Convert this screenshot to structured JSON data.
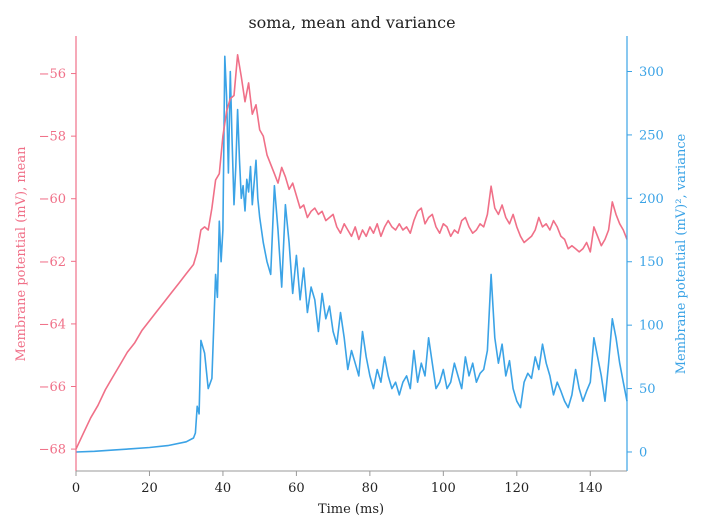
{
  "chart_data": {
    "type": "line",
    "title": "soma, mean and variance",
    "xlabel": "Time (ms)",
    "ylabel_left": "Membrane potential (mV), mean",
    "ylabel_right": "Membrane potential (mV)², variance",
    "xlim": [
      0,
      150
    ],
    "ylim_left": [
      -68.7,
      -54.8
    ],
    "ylim_right": [
      -15,
      328
    ],
    "xticks": [
      0,
      20,
      40,
      60,
      80,
      100,
      120,
      140
    ],
    "yticks_left": [
      -68,
      -66,
      -64,
      -62,
      -60,
      -58,
      -56
    ],
    "yticks_right": [
      0,
      50,
      100,
      150,
      200,
      250,
      300
    ],
    "grid": false,
    "colors": {
      "mean": "#f07088",
      "variance": "#3ba3e6",
      "axis": "#999999"
    },
    "series": [
      {
        "axis": "left",
        "color": "#f07088",
        "points": [
          [
            0,
            -68.0
          ],
          [
            2,
            -67.5
          ],
          [
            4,
            -67.0
          ],
          [
            6,
            -66.6
          ],
          [
            8,
            -66.1
          ],
          [
            10,
            -65.7
          ],
          [
            12,
            -65.3
          ],
          [
            14,
            -64.9
          ],
          [
            16,
            -64.6
          ],
          [
            18,
            -64.2
          ],
          [
            20,
            -63.9
          ],
          [
            22,
            -63.6
          ],
          [
            24,
            -63.3
          ],
          [
            26,
            -63.0
          ],
          [
            28,
            -62.7
          ],
          [
            30,
            -62.4
          ],
          [
            32,
            -62.1
          ],
          [
            33,
            -61.7
          ],
          [
            34,
            -61.0
          ],
          [
            35,
            -60.9
          ],
          [
            36,
            -61.0
          ],
          [
            37,
            -60.3
          ],
          [
            38,
            -59.4
          ],
          [
            39,
            -59.2
          ],
          [
            40,
            -58.0
          ],
          [
            41,
            -57.2
          ],
          [
            42,
            -56.8
          ],
          [
            43,
            -56.7
          ],
          [
            44,
            -55.4
          ],
          [
            45,
            -56.1
          ],
          [
            46,
            -56.9
          ],
          [
            47,
            -56.3
          ],
          [
            48,
            -57.3
          ],
          [
            49,
            -57.0
          ],
          [
            50,
            -57.8
          ],
          [
            51,
            -58.0
          ],
          [
            52,
            -58.6
          ],
          [
            53,
            -58.9
          ],
          [
            54,
            -59.2
          ],
          [
            55,
            -59.5
          ],
          [
            56,
            -59.0
          ],
          [
            57,
            -59.3
          ],
          [
            58,
            -59.7
          ],
          [
            59,
            -59.5
          ],
          [
            60,
            -59.9
          ],
          [
            61,
            -60.3
          ],
          [
            62,
            -60.2
          ],
          [
            63,
            -60.6
          ],
          [
            64,
            -60.4
          ],
          [
            65,
            -60.3
          ],
          [
            66,
            -60.5
          ],
          [
            67,
            -60.4
          ],
          [
            68,
            -60.7
          ],
          [
            69,
            -60.6
          ],
          [
            70,
            -60.5
          ],
          [
            71,
            -60.9
          ],
          [
            72,
            -61.1
          ],
          [
            73,
            -60.8
          ],
          [
            74,
            -61.0
          ],
          [
            75,
            -61.2
          ],
          [
            76,
            -60.9
          ],
          [
            77,
            -61.3
          ],
          [
            78,
            -61.0
          ],
          [
            79,
            -61.2
          ],
          [
            80,
            -60.9
          ],
          [
            81,
            -61.1
          ],
          [
            82,
            -60.8
          ],
          [
            83,
            -61.2
          ],
          [
            84,
            -60.9
          ],
          [
            85,
            -60.7
          ],
          [
            86,
            -60.9
          ],
          [
            87,
            -61.0
          ],
          [
            88,
            -60.8
          ],
          [
            89,
            -61.0
          ],
          [
            90,
            -60.9
          ],
          [
            91,
            -61.1
          ],
          [
            92,
            -60.7
          ],
          [
            93,
            -60.4
          ],
          [
            94,
            -60.3
          ],
          [
            95,
            -60.8
          ],
          [
            96,
            -60.6
          ],
          [
            97,
            -60.5
          ],
          [
            98,
            -60.9
          ],
          [
            99,
            -61.1
          ],
          [
            100,
            -60.8
          ],
          [
            101,
            -60.9
          ],
          [
            102,
            -61.2
          ],
          [
            103,
            -61.0
          ],
          [
            104,
            -61.1
          ],
          [
            105,
            -60.7
          ],
          [
            106,
            -60.6
          ],
          [
            107,
            -60.9
          ],
          [
            108,
            -61.1
          ],
          [
            109,
            -61.0
          ],
          [
            110,
            -60.8
          ],
          [
            111,
            -60.9
          ],
          [
            112,
            -60.5
          ],
          [
            113,
            -59.6
          ],
          [
            114,
            -60.3
          ],
          [
            115,
            -60.5
          ],
          [
            116,
            -60.2
          ],
          [
            117,
            -60.6
          ],
          [
            118,
            -60.8
          ],
          [
            119,
            -60.5
          ],
          [
            120,
            -60.9
          ],
          [
            121,
            -61.2
          ],
          [
            122,
            -61.4
          ],
          [
            123,
            -61.3
          ],
          [
            124,
            -61.2
          ],
          [
            125,
            -61.0
          ],
          [
            126,
            -60.6
          ],
          [
            127,
            -60.9
          ],
          [
            128,
            -60.8
          ],
          [
            129,
            -61.0
          ],
          [
            130,
            -60.7
          ],
          [
            131,
            -60.9
          ],
          [
            132,
            -61.2
          ],
          [
            133,
            -61.3
          ],
          [
            134,
            -61.6
          ],
          [
            135,
            -61.5
          ],
          [
            136,
            -61.6
          ],
          [
            137,
            -61.7
          ],
          [
            138,
            -61.6
          ],
          [
            139,
            -61.4
          ],
          [
            140,
            -61.7
          ],
          [
            141,
            -60.9
          ],
          [
            142,
            -61.2
          ],
          [
            143,
            -61.5
          ],
          [
            144,
            -61.3
          ],
          [
            145,
            -61.0
          ],
          [
            146,
            -60.1
          ],
          [
            147,
            -60.5
          ],
          [
            148,
            -60.8
          ],
          [
            149,
            -61.0
          ],
          [
            150,
            -61.3
          ]
        ]
      },
      {
        "axis": "right",
        "color": "#3ba3e6",
        "points": [
          [
            0,
            0
          ],
          [
            5,
            0.5
          ],
          [
            10,
            1.5
          ],
          [
            15,
            2.5
          ],
          [
            20,
            3.5
          ],
          [
            25,
            5
          ],
          [
            30,
            8
          ],
          [
            32,
            11
          ],
          [
            32.5,
            15
          ],
          [
            33,
            36
          ],
          [
            33.5,
            30
          ],
          [
            34,
            88
          ],
          [
            35,
            78
          ],
          [
            36,
            50
          ],
          [
            37,
            58
          ],
          [
            38,
            140
          ],
          [
            38.5,
            122
          ],
          [
            39,
            182
          ],
          [
            39.5,
            150
          ],
          [
            40,
            175
          ],
          [
            40.5,
            312
          ],
          [
            41,
            280
          ],
          [
            41.5,
            220
          ],
          [
            42,
            300
          ],
          [
            42.5,
            245
          ],
          [
            43,
            195
          ],
          [
            43.5,
            225
          ],
          [
            44,
            270
          ],
          [
            44.5,
            230
          ],
          [
            45,
            200
          ],
          [
            45.5,
            210
          ],
          [
            46,
            190
          ],
          [
            46.5,
            215
          ],
          [
            47,
            205
          ],
          [
            47.5,
            225
          ],
          [
            48,
            195
          ],
          [
            49,
            230
          ],
          [
            49.5,
            200
          ],
          [
            50,
            185
          ],
          [
            51,
            165
          ],
          [
            52,
            150
          ],
          [
            53,
            140
          ],
          [
            54,
            210
          ],
          [
            55,
            175
          ],
          [
            56,
            130
          ],
          [
            57,
            195
          ],
          [
            58,
            165
          ],
          [
            59,
            125
          ],
          [
            60,
            155
          ],
          [
            61,
            120
          ],
          [
            62,
            145
          ],
          [
            63,
            110
          ],
          [
            64,
            130
          ],
          [
            65,
            120
          ],
          [
            66,
            95
          ],
          [
            67,
            125
          ],
          [
            68,
            105
          ],
          [
            69,
            115
          ],
          [
            70,
            95
          ],
          [
            71,
            85
          ],
          [
            72,
            110
          ],
          [
            73,
            90
          ],
          [
            74,
            65
          ],
          [
            75,
            80
          ],
          [
            76,
            70
          ],
          [
            77,
            60
          ],
          [
            78,
            95
          ],
          [
            79,
            75
          ],
          [
            80,
            60
          ],
          [
            81,
            50
          ],
          [
            82,
            65
          ],
          [
            83,
            55
          ],
          [
            84,
            75
          ],
          [
            85,
            60
          ],
          [
            86,
            50
          ],
          [
            87,
            55
          ],
          [
            88,
            45
          ],
          [
            89,
            55
          ],
          [
            90,
            60
          ],
          [
            91,
            50
          ],
          [
            92,
            80
          ],
          [
            93,
            55
          ],
          [
            94,
            70
          ],
          [
            95,
            60
          ],
          [
            96,
            90
          ],
          [
            97,
            70
          ],
          [
            98,
            50
          ],
          [
            99,
            55
          ],
          [
            100,
            65
          ],
          [
            101,
            50
          ],
          [
            102,
            55
          ],
          [
            103,
            70
          ],
          [
            104,
            60
          ],
          [
            105,
            50
          ],
          [
            106,
            75
          ],
          [
            107,
            60
          ],
          [
            108,
            70
          ],
          [
            109,
            55
          ],
          [
            110,
            62
          ],
          [
            111,
            65
          ],
          [
            112,
            80
          ],
          [
            113,
            140
          ],
          [
            114,
            90
          ],
          [
            115,
            70
          ],
          [
            116,
            85
          ],
          [
            117,
            60
          ],
          [
            118,
            72
          ],
          [
            119,
            50
          ],
          [
            120,
            40
          ],
          [
            121,
            35
          ],
          [
            122,
            55
          ],
          [
            123,
            62
          ],
          [
            124,
            58
          ],
          [
            125,
            75
          ],
          [
            126,
            65
          ],
          [
            127,
            85
          ],
          [
            128,
            70
          ],
          [
            129,
            60
          ],
          [
            130,
            45
          ],
          [
            131,
            55
          ],
          [
            132,
            48
          ],
          [
            133,
            40
          ],
          [
            134,
            35
          ],
          [
            135,
            45
          ],
          [
            136,
            65
          ],
          [
            137,
            50
          ],
          [
            138,
            40
          ],
          [
            139,
            48
          ],
          [
            140,
            55
          ],
          [
            141,
            90
          ],
          [
            142,
            75
          ],
          [
            143,
            60
          ],
          [
            144,
            40
          ],
          [
            145,
            70
          ],
          [
            146,
            105
          ],
          [
            147,
            90
          ],
          [
            148,
            70
          ],
          [
            149,
            55
          ],
          [
            150,
            40
          ]
        ]
      }
    ]
  }
}
